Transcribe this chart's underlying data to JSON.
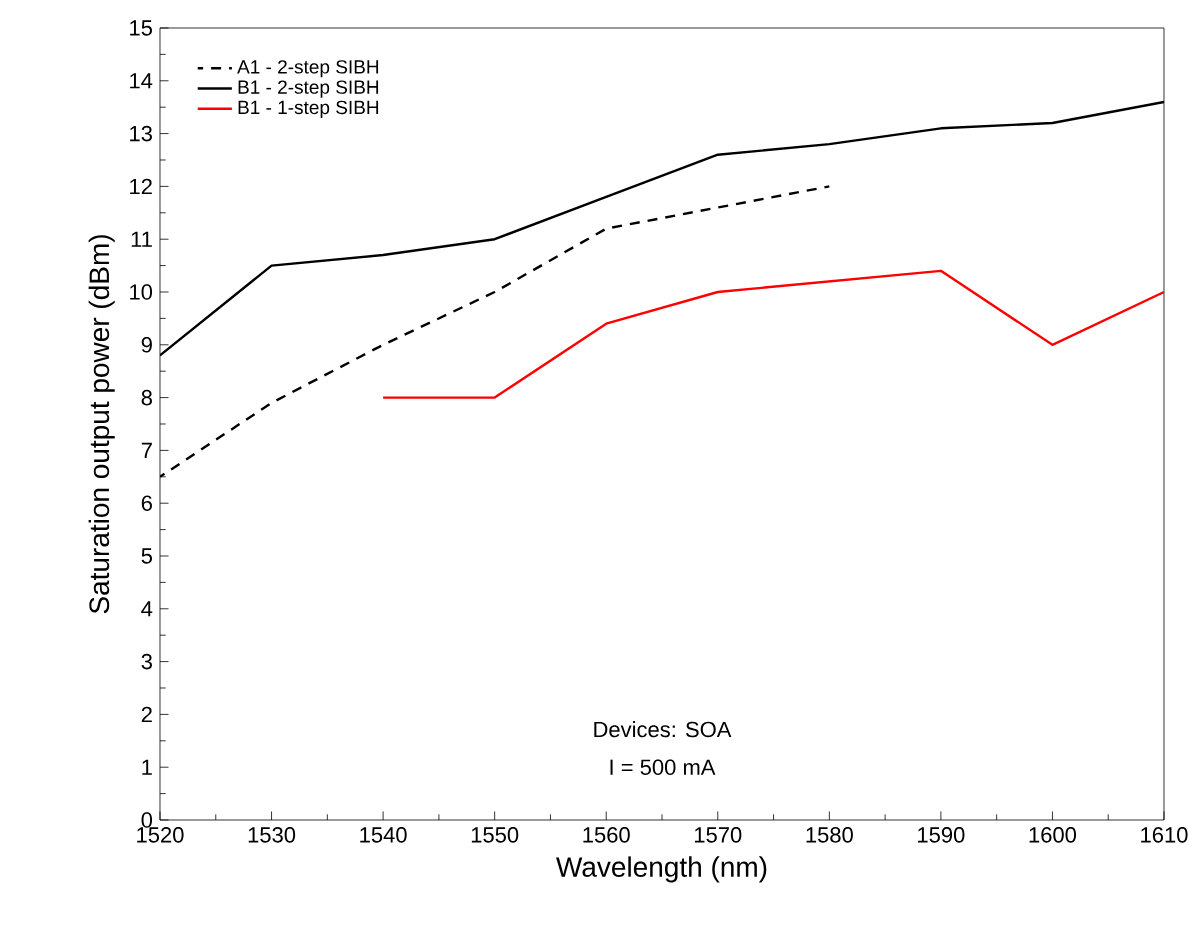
{
  "chart_data": {
    "type": "line",
    "xlabel": "Wavelength (nm)",
    "ylabel": "Saturation output power (dBm)",
    "xlim": [
      1520,
      1610
    ],
    "xticks": [
      1520,
      1530,
      1540,
      1550,
      1560,
      1570,
      1580,
      1590,
      1600,
      1610
    ],
    "ylim": [
      0,
      15
    ],
    "yticks": [
      0,
      1,
      2,
      3,
      4,
      5,
      6,
      7,
      8,
      9,
      10,
      11,
      12,
      13,
      14,
      15
    ],
    "legend": "top left",
    "marker": "none",
    "annotations": [
      "Devices: SOA",
      "I = 500 mA"
    ],
    "series": [
      {
        "name": "A1 - 2-step SIBH",
        "color": "#000000",
        "line_style": "dashed",
        "x": [
          1520,
          1530,
          1540,
          1550,
          1560,
          1570,
          1580
        ],
        "values": [
          6.5,
          7.9,
          9.0,
          10.0,
          11.2,
          11.6,
          12.0
        ]
      },
      {
        "name": "B1 - 2-step SIBH",
        "color": "#000000",
        "line_style": "solid",
        "x": [
          1520,
          1530,
          1540,
          1550,
          1560,
          1570,
          1580,
          1590,
          1600,
          1610
        ],
        "values": [
          8.8,
          10.5,
          10.7,
          11.0,
          11.8,
          12.6,
          12.8,
          13.1,
          13.2,
          13.6
        ]
      },
      {
        "name": "B1 - 1-step SIBH",
        "color": "#ff0000",
        "line_style": "solid",
        "x": [
          1540,
          1550,
          1560,
          1570,
          1580,
          1590,
          1600,
          1610
        ],
        "values": [
          8.0,
          8.0,
          9.4,
          10.0,
          10.2,
          10.4,
          9.0,
          10.0
        ]
      }
    ]
  }
}
